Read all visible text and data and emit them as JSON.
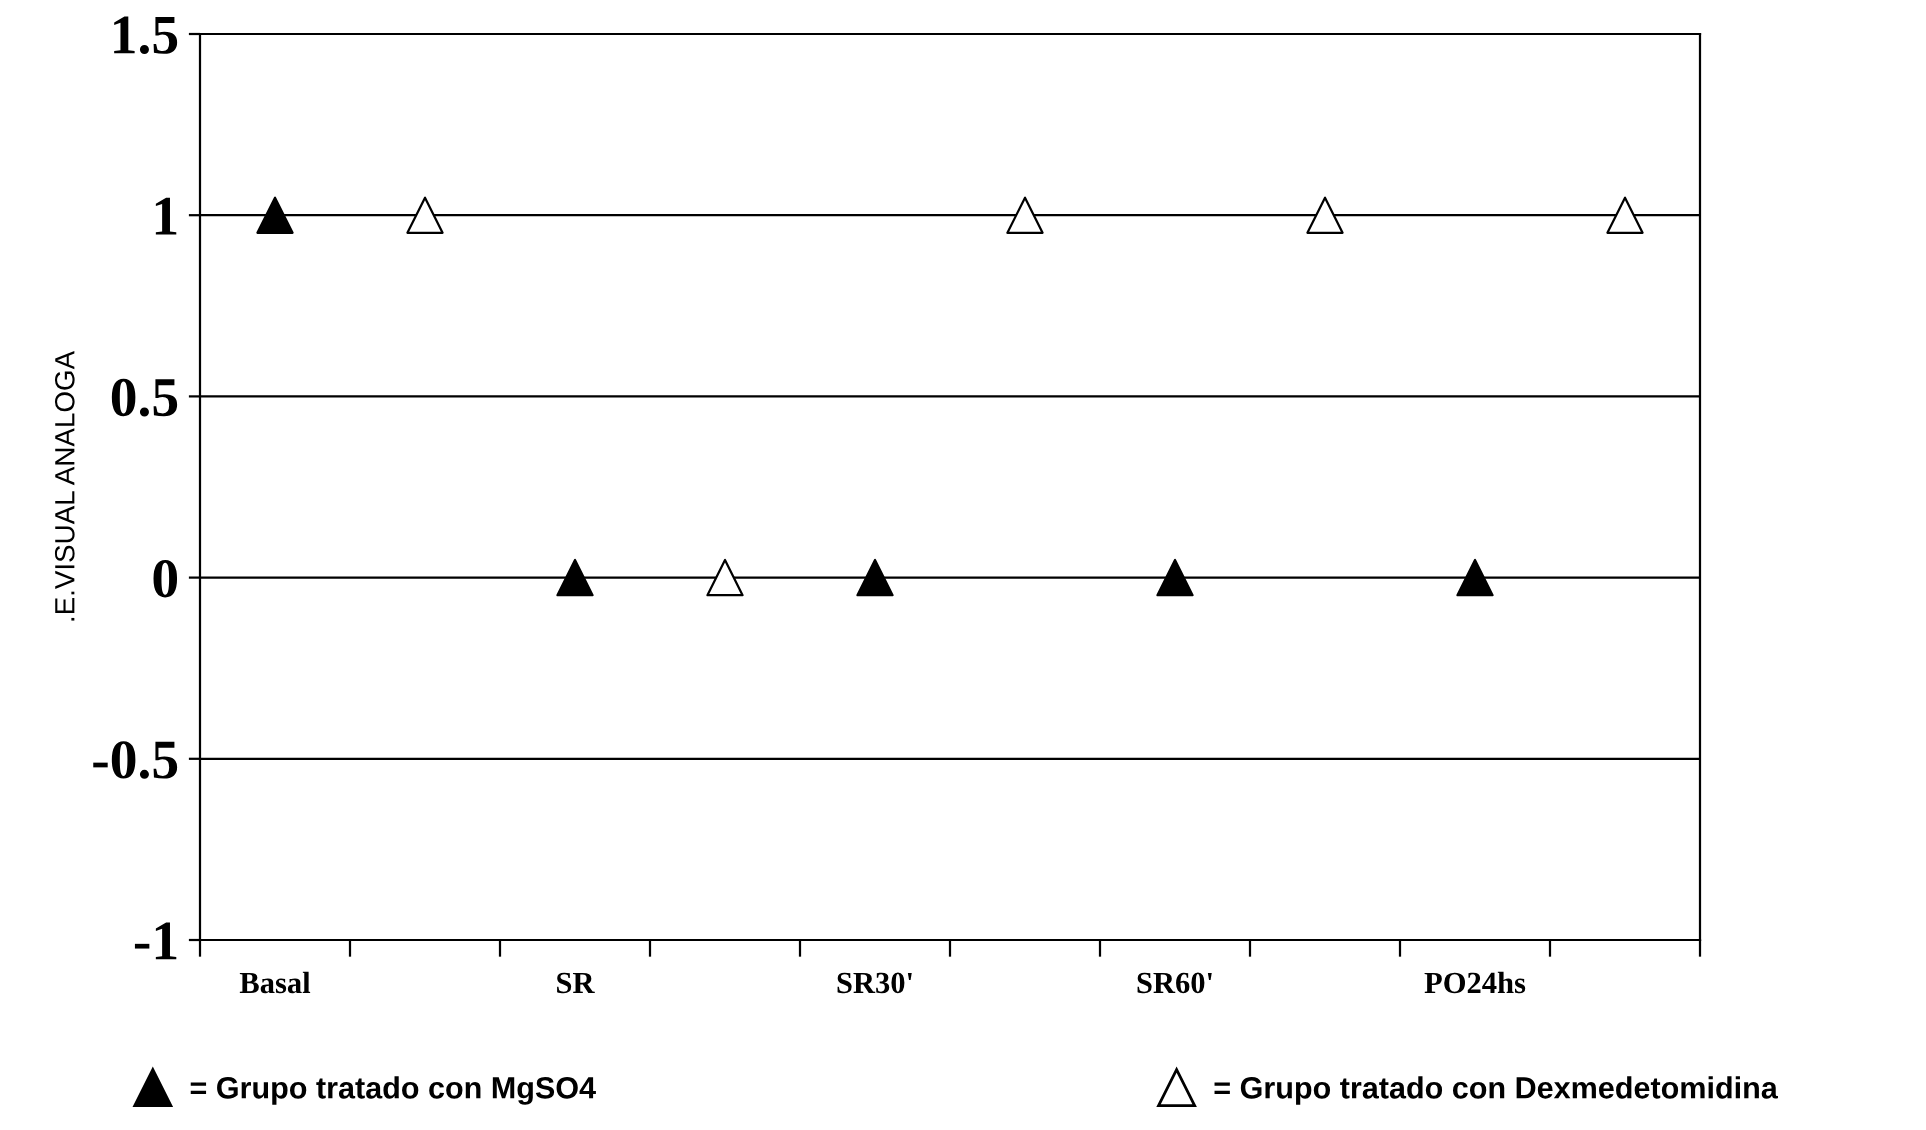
{
  "chart_data": {
    "type": "scatter",
    "ylabel": ".E.VISUAL ANALOGA",
    "categories": [
      "Basal",
      null,
      "SR",
      null,
      "SR30'",
      null,
      "SR60'",
      null,
      "PO24hs",
      null
    ],
    "series": [
      {
        "name": "= Grupo tratado con MgSO4",
        "color": "#000000",
        "values": [
          1,
          null,
          0,
          null,
          0,
          null,
          0,
          null,
          0,
          null
        ]
      },
      {
        "name": "= Grupo tratado con Dexmedetomidina",
        "color": "#ffffff",
        "values": [
          null,
          1,
          null,
          0,
          null,
          1,
          null,
          1,
          null,
          1
        ]
      }
    ],
    "ylim": [
      -1,
      1.5
    ],
    "yticks": [
      -1,
      -0.5,
      0,
      0.5,
      1,
      1.5
    ],
    "grid": "y",
    "legend": "bottom",
    "marker": "triangle"
  }
}
